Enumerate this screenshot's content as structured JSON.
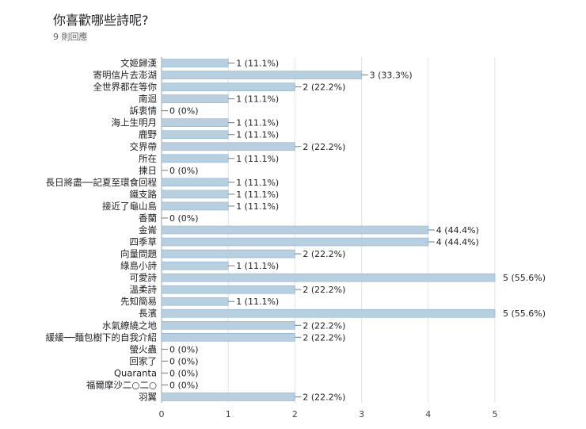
{
  "header": {
    "title": "你喜歡哪些詩呢?",
    "subtitle": "9 則回應"
  },
  "colors": {
    "bar": "#b8cfe0",
    "bar_stroke": "#8fb1cb",
    "grid": "#e3e3e3",
    "axis": "#9e9e9e"
  },
  "chart_data": {
    "type": "bar",
    "orientation": "horizontal",
    "xlim": [
      0,
      5
    ],
    "xticks": [
      "0",
      "1",
      "2",
      "3",
      "4",
      "5"
    ],
    "grid": true,
    "categories": [
      "文姬歸漢",
      "寄明信片去澎湖",
      "全世界都在等你",
      "南迴",
      "訴衷情",
      "海上生明月",
      "鹿野",
      "交界帶",
      "所在",
      "揀日",
      "長日將盡──記夏至環食回程",
      "鐵支路",
      "接近了龜山島",
      "香蘭",
      "金崙",
      "四季草",
      "向量問題",
      "綠島小詩",
      "可愛詩",
      "溫柔詩",
      "先知簡易",
      "長濱",
      "水氣繚繞之地",
      "緩緩──麵包樹下的自我介紹",
      "螢火蟲",
      "回家了",
      "Quaranta",
      "福爾摩沙二○二○",
      "羽翼"
    ],
    "values": [
      1,
      3,
      2,
      1,
      0,
      1,
      1,
      2,
      1,
      0,
      1,
      1,
      1,
      0,
      4,
      4,
      2,
      1,
      5,
      2,
      1,
      5,
      2,
      2,
      0,
      0,
      0,
      0,
      2
    ],
    "labels": [
      "1 (11.1%)",
      "3 (33.3%)",
      "2 (22.2%)",
      "1 (11.1%)",
      "0 (0%)",
      "1 (11.1%)",
      "1 (11.1%)",
      "2 (22.2%)",
      "1 (11.1%)",
      "0 (0%)",
      "1 (11.1%)",
      "1 (11.1%)",
      "1 (11.1%)",
      "0 (0%)",
      "4 (44.4%)",
      "4 (44.4%)",
      "2 (22.2%)",
      "1 (11.1%)",
      "5 (55.6%)",
      "2 (22.2%)",
      "1 (11.1%)",
      "5 (55.6%)",
      "2 (22.2%)",
      "2 (22.2%)",
      "0 (0%)",
      "0 (0%)",
      "0 (0%)",
      "0 (0%)",
      "2 (22.2%)"
    ]
  }
}
